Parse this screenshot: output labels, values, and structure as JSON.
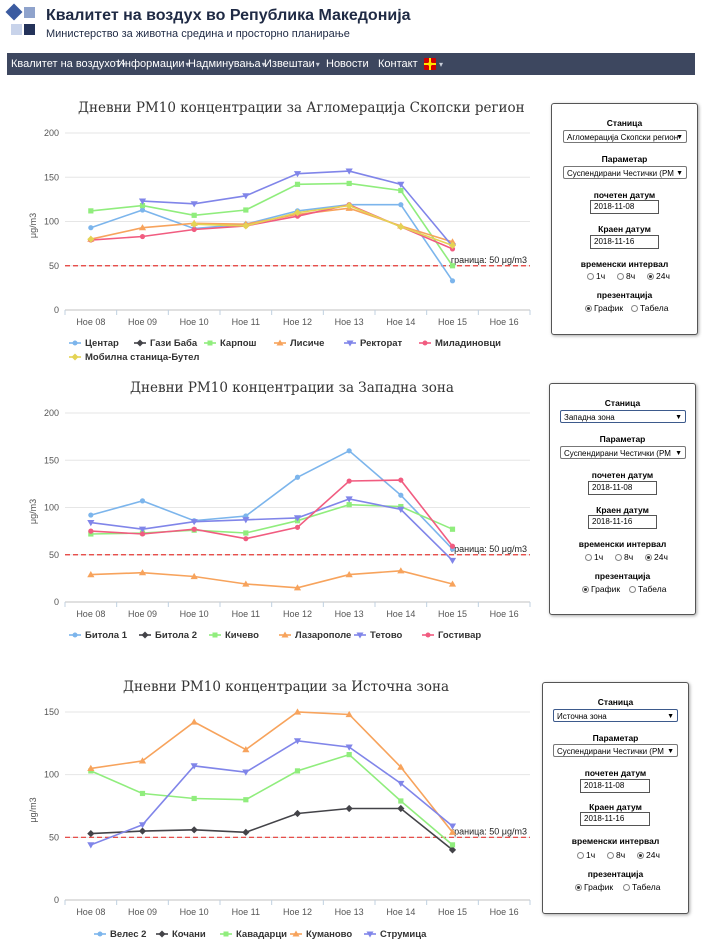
{
  "header": {
    "title": "Квалитет на воздух во Република Македонија",
    "subtitle": "Министерство за животна средина и просторно планирање"
  },
  "nav": {
    "items": [
      {
        "label": "Квалитет на воздухот",
        "dropdown": true
      },
      {
        "label": "Информации",
        "dropdown": true
      },
      {
        "label": "Надминувања",
        "dropdown": true
      },
      {
        "label": "Извештаи",
        "dropdown": true
      },
      {
        "label": "Новости",
        "dropdown": false
      },
      {
        "label": "Контакт",
        "dropdown": false
      }
    ],
    "lang_flag": "mk-flag-icon"
  },
  "colors": {
    "nav_bg": "#3d475f",
    "limit_line": "#e53935"
  },
  "panels": [
    {
      "station_label": "Станица",
      "station_value": "Агломерација Скопски регион",
      "parameter_label": "Параметар",
      "parameter_value": "Суспендирани Честички (PM",
      "start_label": "почетен датум",
      "start_value": "2018-11-08",
      "end_label": "Краен датум",
      "end_value": "2018-11-16",
      "interval_label": "временски интервал",
      "intervals": [
        "1ч",
        "8ч",
        "24ч"
      ],
      "interval_selected": "24ч",
      "presentation_label": "презентација",
      "presentations": [
        "График",
        "Табела"
      ],
      "presentation_selected": "График"
    },
    {
      "station_label": "Станица",
      "station_value": "Западна зона",
      "parameter_label": "Параметар",
      "parameter_value": "Суспендирани Честички (PM",
      "start_label": "почетен датум",
      "start_value": "2018-11-08",
      "end_label": "Краен датум",
      "end_value": "2018-11-16",
      "interval_label": "временски интервал",
      "intervals": [
        "1ч",
        "8ч",
        "24ч"
      ],
      "interval_selected": "24ч",
      "presentation_label": "презентација",
      "presentations": [
        "График",
        "Табела"
      ],
      "presentation_selected": "График"
    },
    {
      "station_label": "Станица",
      "station_value": "Источна зона",
      "parameter_label": "Параметар",
      "parameter_value": "Суспендирани Честички (PM",
      "start_label": "почетен датум",
      "start_value": "2018-11-08",
      "end_label": "Краен датум",
      "end_value": "2018-11-16",
      "interval_label": "временски интервал",
      "intervals": [
        "1ч",
        "8ч",
        "24ч"
      ],
      "interval_selected": "24ч",
      "presentation_label": "презентација",
      "presentations": [
        "График",
        "Табела"
      ],
      "presentation_selected": "График"
    }
  ],
  "chart_data": [
    {
      "type": "line",
      "title": "Дневни PM10 концентрации за Агломерација Скопски регион",
      "ylabel": "μg/m3",
      "ylim": [
        0,
        200
      ],
      "yticks": [
        0,
        50,
        100,
        150,
        200
      ],
      "categories": [
        "Ное 08",
        "Ное 09",
        "Ное 10",
        "Ное 11",
        "Ное 12",
        "Ное 13",
        "Ное 14",
        "Ное 15",
        "Ное 16"
      ],
      "limit": {
        "value": 50,
        "label": "граница: 50 μg/m3"
      },
      "grid": true,
      "legend_position": "bottom",
      "series": [
        {
          "name": "Центар",
          "color": "#7cb5ec",
          "marker": "circle",
          "values": [
            93,
            113,
            92,
            97,
            112,
            119,
            119,
            33,
            null
          ]
        },
        {
          "name": "Гази Баба",
          "color": "#434348",
          "marker": "diamond",
          "values": [
            null,
            null,
            null,
            null,
            null,
            null,
            null,
            null,
            null
          ]
        },
        {
          "name": "Карпош",
          "color": "#90ed7d",
          "marker": "square",
          "values": [
            112,
            118,
            107,
            113,
            142,
            143,
            135,
            50,
            null
          ]
        },
        {
          "name": "Лисиче",
          "color": "#f7a35c",
          "marker": "triangle",
          "values": [
            80,
            93,
            98,
            97,
            108,
            115,
            95,
            77,
            null
          ]
        },
        {
          "name": "Ректорат",
          "color": "#8085e9",
          "marker": "triangle-down",
          "values": [
            null,
            123,
            120,
            129,
            154,
            157,
            142,
            72,
            null
          ]
        },
        {
          "name": "Миладиновци",
          "color": "#f15c80",
          "marker": "circle",
          "values": [
            79,
            83,
            91,
            95,
            106,
            119,
            94,
            69,
            null
          ]
        },
        {
          "name": "Мобилна станица-Бутел",
          "color": "#e4d354",
          "marker": "diamond",
          "values": [
            80,
            null,
            97,
            95,
            110,
            118,
            94,
            73,
            null
          ]
        }
      ]
    },
    {
      "type": "line",
      "title": "Дневни PM10 концентрации за Западна зона",
      "ylabel": "μg/m3",
      "ylim": [
        0,
        200
      ],
      "yticks": [
        0,
        50,
        100,
        150,
        200
      ],
      "categories": [
        "Ное 08",
        "Ное 09",
        "Ное 10",
        "Ное 11",
        "Ное 12",
        "Ное 13",
        "Ное 14",
        "Ное 15",
        "Ное 16"
      ],
      "limit": {
        "value": 50,
        "label": "граница: 50 μg/m3"
      },
      "grid": true,
      "legend_position": "bottom",
      "series": [
        {
          "name": "Битола 1",
          "color": "#7cb5ec",
          "marker": "circle",
          "values": [
            92,
            107,
            86,
            91,
            132,
            160,
            113,
            56,
            null
          ]
        },
        {
          "name": "Битола 2",
          "color": "#434348",
          "marker": "diamond",
          "values": [
            null,
            null,
            null,
            null,
            null,
            null,
            null,
            null,
            null
          ]
        },
        {
          "name": "Кичево",
          "color": "#90ed7d",
          "marker": "square",
          "values": [
            72,
            73,
            76,
            73,
            86,
            103,
            101,
            77,
            null
          ]
        },
        {
          "name": "Лазарополе",
          "color": "#f7a35c",
          "marker": "triangle",
          "values": [
            29,
            31,
            27,
            19,
            15,
            29,
            33,
            19,
            null
          ]
        },
        {
          "name": "Тетово",
          "color": "#8085e9",
          "marker": "triangle-down",
          "values": [
            84,
            77,
            85,
            87,
            89,
            109,
            98,
            44,
            null
          ]
        },
        {
          "name": "Гостивар",
          "color": "#f15c80",
          "marker": "circle",
          "values": [
            75,
            72,
            77,
            67,
            79,
            128,
            129,
            59,
            null
          ]
        }
      ]
    },
    {
      "type": "line",
      "title": "Дневни PM10 концентрации за Источна зона",
      "ylabel": "μg/m3",
      "ylim": [
        0,
        150
      ],
      "yticks": [
        0,
        50,
        100,
        150
      ],
      "categories": [
        "Ное 08",
        "Ное 09",
        "Ное 10",
        "Ное 11",
        "Ное 12",
        "Ное 13",
        "Ное 14",
        "Ное 15",
        "Ное 16"
      ],
      "limit": {
        "value": 50,
        "label": "граница: 50 μg/m3"
      },
      "grid": true,
      "legend_position": "bottom",
      "series": [
        {
          "name": "Велес 2",
          "color": "#7cb5ec",
          "marker": "circle",
          "values": [
            null,
            null,
            null,
            null,
            null,
            null,
            null,
            null,
            null
          ]
        },
        {
          "name": "Кочани",
          "color": "#434348",
          "marker": "diamond",
          "values": [
            53,
            55,
            56,
            54,
            69,
            73,
            73,
            40,
            null
          ]
        },
        {
          "name": "Кавадарци",
          "color": "#90ed7d",
          "marker": "square",
          "values": [
            103,
            85,
            81,
            80,
            103,
            116,
            79,
            44,
            null
          ]
        },
        {
          "name": "Куманово",
          "color": "#f7a35c",
          "marker": "triangle",
          "values": [
            105,
            111,
            142,
            120,
            150,
            148,
            106,
            54,
            null
          ]
        },
        {
          "name": "Струмица",
          "color": "#8085e9",
          "marker": "triangle-down",
          "values": [
            44,
            60,
            107,
            102,
            127,
            122,
            93,
            59,
            null
          ]
        }
      ]
    }
  ]
}
